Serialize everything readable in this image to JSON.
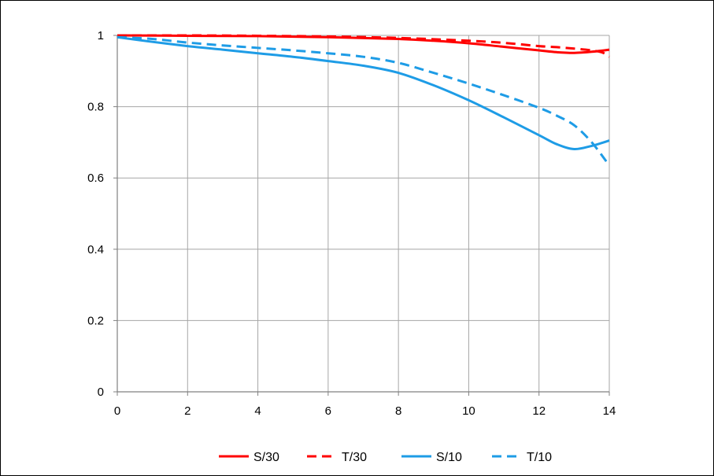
{
  "chart_data": {
    "type": "line",
    "title": "",
    "xlabel": "",
    "ylabel": "",
    "xlim": [
      0,
      14
    ],
    "ylim": [
      0,
      1
    ],
    "x_ticks": [
      0,
      2,
      4,
      6,
      8,
      10,
      12,
      14
    ],
    "y_ticks": [
      0,
      0.2,
      0.4,
      0.6,
      0.8,
      1
    ],
    "x_tick_labels": [
      "0",
      "2",
      "4",
      "6",
      "8",
      "10",
      "12",
      "14"
    ],
    "y_tick_labels": [
      "0",
      "0.2",
      "0.4",
      "0.6",
      "0.8",
      "1"
    ],
    "grid": true,
    "legend_position": "bottom",
    "series": [
      {
        "name": "S/30",
        "color": "#ff0000",
        "dash": "solid",
        "x": [
          0,
          2,
          4,
          6,
          8,
          9,
          10,
          11,
          12,
          12.5,
          13,
          13.5,
          14
        ],
        "y": [
          1.0,
          0.999,
          0.998,
          0.995,
          0.99,
          0.985,
          0.978,
          0.968,
          0.958,
          0.953,
          0.951,
          0.954,
          0.96
        ]
      },
      {
        "name": "T/30",
        "color": "#ff0000",
        "dash": "dashed",
        "x": [
          0,
          2,
          4,
          6,
          8,
          10,
          11,
          12,
          12.5,
          13,
          13.5,
          13.8,
          14
        ],
        "y": [
          1.0,
          1.0,
          0.999,
          0.997,
          0.993,
          0.985,
          0.979,
          0.97,
          0.967,
          0.963,
          0.958,
          0.952,
          0.94
        ]
      },
      {
        "name": "S/10",
        "color": "#1e9ce6",
        "dash": "solid",
        "x": [
          0,
          1,
          2,
          3,
          4,
          5,
          6,
          7,
          8,
          9,
          10,
          11,
          12,
          12.5,
          13,
          13.5,
          14
        ],
        "y": [
          0.995,
          0.982,
          0.97,
          0.96,
          0.95,
          0.94,
          0.928,
          0.915,
          0.895,
          0.86,
          0.818,
          0.77,
          0.72,
          0.695,
          0.681,
          0.69,
          0.705
        ]
      },
      {
        "name": "T/10",
        "color": "#1e9ce6",
        "dash": "dashed",
        "x": [
          0,
          1,
          2,
          3,
          4,
          5,
          6,
          7,
          8,
          9,
          10,
          11,
          12,
          12.5,
          13,
          13.5,
          14
        ],
        "y": [
          0.995,
          0.99,
          0.98,
          0.972,
          0.965,
          0.958,
          0.95,
          0.94,
          0.923,
          0.895,
          0.865,
          0.832,
          0.797,
          0.775,
          0.748,
          0.7,
          0.635
        ]
      }
    ]
  }
}
